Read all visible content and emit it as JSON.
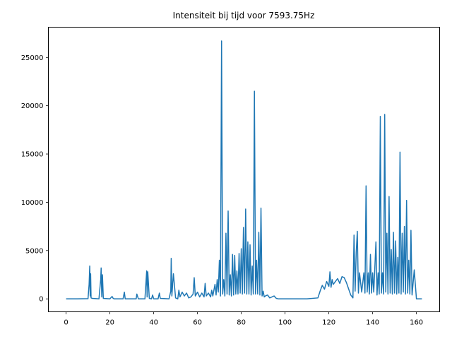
{
  "chart_data": {
    "type": "line",
    "title": "Intensiteit bij tijd voor 7593.75Hz",
    "xlabel": "",
    "ylabel": "",
    "xlim": [
      -8.1,
      170.6
    ],
    "ylim": [
      -1340,
      28130
    ],
    "x_ticks": [
      0,
      20,
      40,
      60,
      80,
      100,
      120,
      140,
      160
    ],
    "y_ticks": [
      0,
      5000,
      10000,
      15000,
      20000,
      25000
    ],
    "grid": false,
    "legend": "none",
    "line_color": "#1f77b4",
    "series": [
      {
        "x": [
          0,
          5,
          10,
          10.5,
          10.8,
          11,
          11.2,
          11.4,
          12,
          15,
          15.8,
          16,
          16.3,
          16.6,
          17,
          20,
          21,
          21.5,
          22,
          26,
          26.6,
          27,
          30,
          32,
          32.3,
          33,
          36,
          36.8,
          37,
          37.3,
          38,
          39,
          39.5,
          40,
          42,
          42.6,
          43,
          47,
          47.8,
          48,
          48.3,
          49,
          50,
          51,
          51.5,
          52,
          53,
          54,
          55,
          56,
          57,
          58,
          58.5,
          59,
          60,
          61,
          62,
          63,
          63.5,
          64,
          65,
          66,
          66.5,
          67,
          68,
          68.5,
          69,
          69.5,
          70,
          70.5,
          71,
          71.5,
          72,
          72.5,
          73,
          73.5,
          74,
          74.5,
          75,
          75.5,
          76,
          76.5,
          77,
          77.5,
          78,
          78.5,
          79,
          79.5,
          80,
          80.5,
          81,
          81.5,
          82,
          82.5,
          83,
          83.5,
          84,
          84.5,
          85,
          85.5,
          86,
          86.5,
          87,
          87.5,
          88,
          88.5,
          89,
          89.5,
          90,
          90.5,
          91,
          92,
          93,
          95,
          96,
          97,
          100,
          110,
          115,
          116,
          117,
          118,
          119,
          120,
          120.5,
          121,
          121.5,
          122,
          123,
          124,
          125,
          126,
          127,
          128,
          130,
          131,
          131.5,
          132,
          132.5,
          133,
          133.5,
          134,
          135,
          136,
          136.5,
          137,
          137.5,
          138,
          138.5,
          139,
          139.5,
          140,
          140.5,
          141,
          141.5,
          142,
          142.5,
          143,
          143.5,
          144,
          144.5,
          145,
          145.5,
          146,
          146.5,
          147,
          147.5,
          148,
          148.5,
          149,
          149.5,
          150,
          150.5,
          151,
          151.5,
          152,
          152.5,
          153,
          153.5,
          154,
          154.5,
          155,
          155.5,
          156,
          156.5,
          157,
          157.5,
          158,
          159,
          160,
          162.5
        ],
        "y": [
          0,
          0,
          20,
          1500,
          3400,
          300,
          2600,
          100,
          50,
          0,
          2000,
          3200,
          200,
          2500,
          50,
          0,
          250,
          50,
          0,
          0,
          700,
          0,
          0,
          0,
          500,
          0,
          0,
          2900,
          200,
          2800,
          50,
          0,
          400,
          0,
          0,
          600,
          50,
          0,
          800,
          4200,
          300,
          2600,
          100,
          0,
          900,
          200,
          700,
          300,
          600,
          100,
          200,
          500,
          2200,
          300,
          700,
          200,
          600,
          200,
          1600,
          300,
          600,
          200,
          900,
          300,
          1500,
          400,
          2000,
          700,
          4000,
          300,
          26700,
          500,
          2000,
          300,
          6800,
          500,
          9100,
          400,
          2500,
          300,
          4600,
          400,
          4500,
          500,
          2900,
          500,
          4700,
          600,
          5200,
          500,
          7400,
          600,
          9300,
          500,
          5900,
          500,
          5600,
          400,
          3400,
          500,
          21500,
          500,
          4000,
          500,
          6900,
          400,
          9400,
          300,
          800,
          200,
          300,
          400,
          100,
          300,
          50,
          0,
          0,
          0,
          100,
          800,
          1400,
          1000,
          1800,
          1300,
          2800,
          1200,
          2000,
          1500,
          1800,
          2100,
          1600,
          2300,
          2200,
          1700,
          400,
          100,
          6600,
          800,
          4800,
          7000,
          600,
          2700,
          700,
          2700,
          600,
          11700,
          700,
          2700,
          500,
          4600,
          600,
          2700,
          700,
          3200,
          5900,
          400,
          2700,
          500,
          18900,
          600,
          2700,
          500,
          19100,
          700,
          6800,
          500,
          10600,
          600,
          5100,
          500,
          6900,
          600,
          6000,
          500,
          4300,
          600,
          15200,
          500,
          6800,
          700,
          7500,
          500,
          10200,
          600,
          4000,
          500,
          7100,
          400,
          3000,
          0,
          0
        ]
      }
    ]
  }
}
